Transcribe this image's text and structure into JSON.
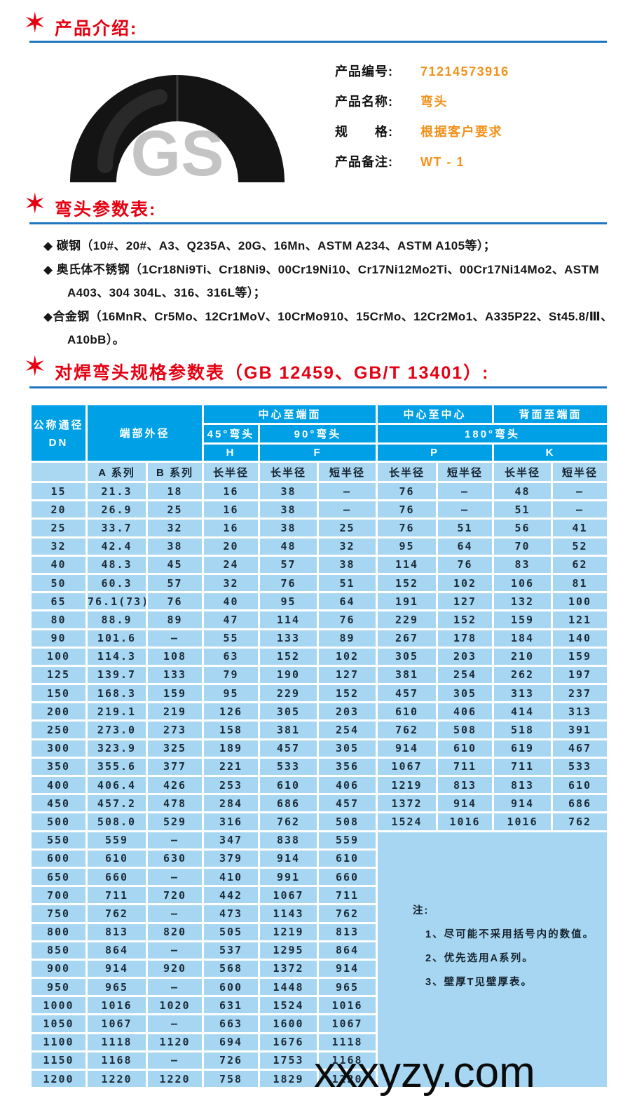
{
  "sections": {
    "intro_title": "产品介绍:",
    "params_title": "弯头参数表:",
    "spec_title": "对焊弯头规格参数表（GB 12459、GB/T 13401）:"
  },
  "star_glyph": "✶",
  "product": {
    "image_watermark": "GS",
    "fields": [
      {
        "label": "产品编号:",
        "value": "71214573916"
      },
      {
        "label": "产品名称:",
        "value": "弯头"
      },
      {
        "label": "规　　格:",
        "value": "根据客户要求"
      },
      {
        "label": "产品备注:",
        "value": "WT - 1"
      }
    ]
  },
  "materials": [
    {
      "lines": [
        "◆ 碳钢（10#、20#、A3、Q235A、20G、16Mn、ASTM A234、ASTM A105等）；"
      ]
    },
    {
      "lines": [
        "◆ 奥氏体不锈钢（1Cr18Ni9Ti、Cr18Ni9、00Cr19Ni10、Cr17Ni12Mo2Ti、00Cr17Ni14Mo2、ASTM",
        "A403、304 304L、316、316L等）；"
      ]
    },
    {
      "lines": [
        "◆合金钢（16MnR、Cr5Mo、12Cr1MoV、10CrMo910、15CrMo、12Cr2Mo1、A335P22、St45.8/Ⅲ、",
        "A10bB）。"
      ]
    }
  ],
  "spec_table": {
    "header": {
      "dn_line1": "公称通径",
      "dn_line2": "DN",
      "end_od": "端部外径",
      "center_to_end": "中心至端面",
      "center_to_center": "中心至中心",
      "back_to_end": "背面至端面",
      "elbow45": "45°弯头",
      "elbow90": "90°弯头",
      "elbow180": "180°弯头",
      "h": "H",
      "f": "F",
      "p": "P",
      "k": "K",
      "series_a": "A 系列",
      "series_b": "B 系列",
      "long_radius": "长半径",
      "short_radius": "短半径"
    },
    "note_row_index": 19,
    "rows": [
      [
        "15",
        "21.3",
        "18",
        "16",
        "38",
        "—",
        "76",
        "—",
        "48",
        "—"
      ],
      [
        "20",
        "26.9",
        "25",
        "16",
        "38",
        "—",
        "76",
        "—",
        "51",
        "—"
      ],
      [
        "25",
        "33.7",
        "32",
        "16",
        "38",
        "25",
        "76",
        "51",
        "56",
        "41"
      ],
      [
        "32",
        "42.4",
        "38",
        "20",
        "48",
        "32",
        "95",
        "64",
        "70",
        "52"
      ],
      [
        "40",
        "48.3",
        "45",
        "24",
        "57",
        "38",
        "114",
        "76",
        "83",
        "62"
      ],
      [
        "50",
        "60.3",
        "57",
        "32",
        "76",
        "51",
        "152",
        "102",
        "106",
        "81"
      ],
      [
        "65",
        "76.1(73)",
        "76",
        "40",
        "95",
        "64",
        "191",
        "127",
        "132",
        "100"
      ],
      [
        "80",
        "88.9",
        "89",
        "47",
        "114",
        "76",
        "229",
        "152",
        "159",
        "121"
      ],
      [
        "90",
        "101.6",
        "—",
        "55",
        "133",
        "89",
        "267",
        "178",
        "184",
        "140"
      ],
      [
        "100",
        "114.3",
        "108",
        "63",
        "152",
        "102",
        "305",
        "203",
        "210",
        "159"
      ],
      [
        "125",
        "139.7",
        "133",
        "79",
        "190",
        "127",
        "381",
        "254",
        "262",
        "197"
      ],
      [
        "150",
        "168.3",
        "159",
        "95",
        "229",
        "152",
        "457",
        "305",
        "313",
        "237"
      ],
      [
        "200",
        "219.1",
        "219",
        "126",
        "305",
        "203",
        "610",
        "406",
        "414",
        "313"
      ],
      [
        "250",
        "273.0",
        "273",
        "158",
        "381",
        "254",
        "762",
        "508",
        "518",
        "391"
      ],
      [
        "300",
        "323.9",
        "325",
        "189",
        "457",
        "305",
        "914",
        "610",
        "619",
        "467"
      ],
      [
        "350",
        "355.6",
        "377",
        "221",
        "533",
        "356",
        "1067",
        "711",
        "711",
        "533"
      ],
      [
        "400",
        "406.4",
        "426",
        "253",
        "610",
        "406",
        "1219",
        "813",
        "813",
        "610"
      ],
      [
        "450",
        "457.2",
        "478",
        "284",
        "686",
        "457",
        "1372",
        "914",
        "914",
        "686"
      ],
      [
        "500",
        "508.0",
        "529",
        "316",
        "762",
        "508",
        "1524",
        "1016",
        "1016",
        "762"
      ],
      [
        "550",
        "559",
        "—",
        "347",
        "838",
        "559"
      ],
      [
        "600",
        "610",
        "630",
        "379",
        "914",
        "610"
      ],
      [
        "650",
        "660",
        "—",
        "410",
        "991",
        "660"
      ],
      [
        "700",
        "711",
        "720",
        "442",
        "1067",
        "711"
      ],
      [
        "750",
        "762",
        "—",
        "473",
        "1143",
        "762"
      ],
      [
        "800",
        "813",
        "820",
        "505",
        "1219",
        "813"
      ],
      [
        "850",
        "864",
        "—",
        "537",
        "1295",
        "864"
      ],
      [
        "900",
        "914",
        "920",
        "568",
        "1372",
        "914"
      ],
      [
        "950",
        "965",
        "—",
        "600",
        "1448",
        "965"
      ],
      [
        "1000",
        "1016",
        "1020",
        "631",
        "1524",
        "1016"
      ],
      [
        "1050",
        "1067",
        "—",
        "663",
        "1600",
        "1067"
      ],
      [
        "1100",
        "1118",
        "1120",
        "694",
        "1676",
        "1118"
      ],
      [
        "1150",
        "1168",
        "—",
        "726",
        "1753",
        "1168"
      ],
      [
        "1200",
        "1220",
        "1220",
        "758",
        "1829",
        "1220"
      ]
    ],
    "notes": {
      "title": "注:",
      "items": [
        "1、尽可能不采用括号内的数值。",
        "2、优先选用A系列。",
        "3、壁厚T见壁厚表。"
      ]
    }
  },
  "watermark": "xxxyzy.com",
  "colors": {
    "accent_red": "#e60012",
    "rule_blue": "#1d76bf",
    "value_orange": "#f39119",
    "table_header_blue": "#00a0e6",
    "table_cell_blue": "#a6d6f1"
  }
}
